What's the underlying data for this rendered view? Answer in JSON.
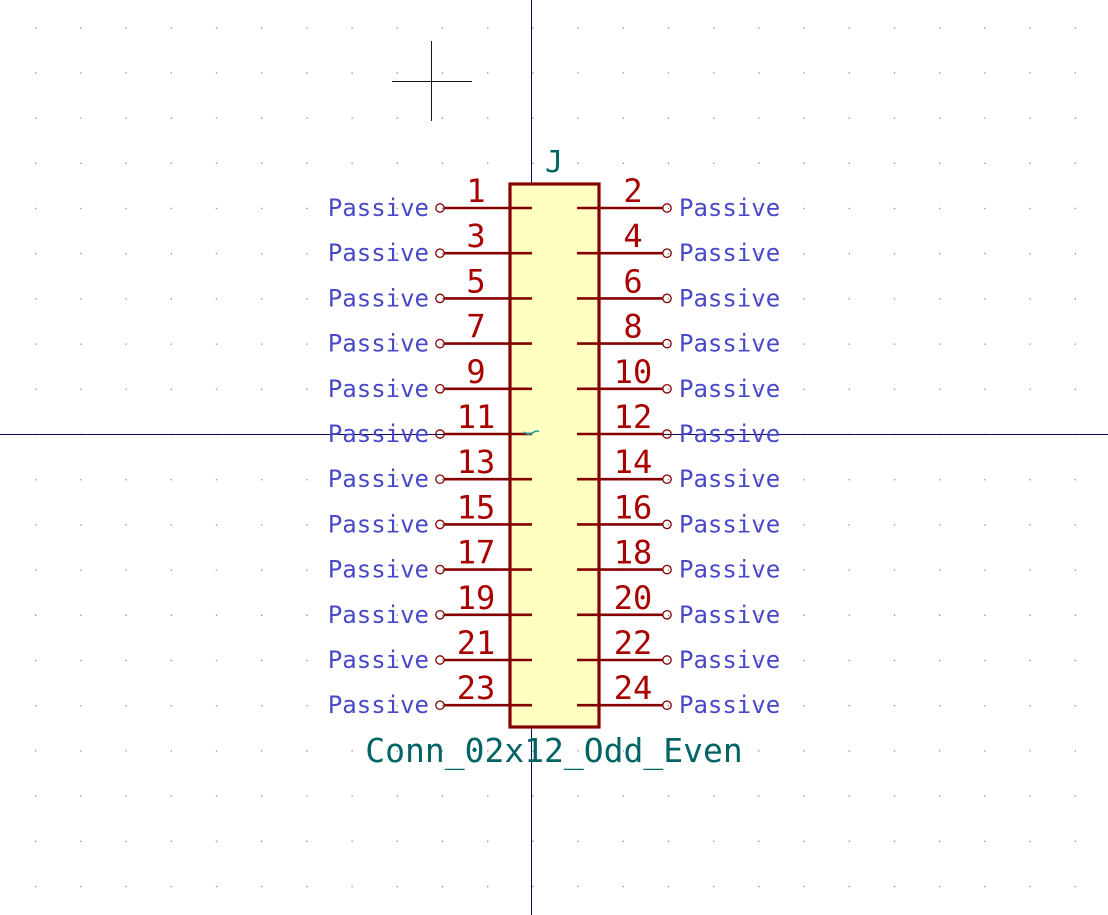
{
  "symbol": {
    "reference": "J",
    "value": "Conn_02x12_Odd_Even",
    "pin_type_label": "Passive",
    "pins_left": [
      "1",
      "3",
      "5",
      "7",
      "9",
      "11",
      "13",
      "15",
      "17",
      "19",
      "21",
      "23"
    ],
    "pins_right": [
      "2",
      "4",
      "6",
      "8",
      "10",
      "12",
      "14",
      "16",
      "18",
      "20",
      "22",
      "24"
    ]
  },
  "colors": {
    "background": "#ffffff",
    "grid": "#9a9a9a",
    "axes": "#0a0a5a",
    "cursor": "#1a1a1a",
    "body_outline": "#840000",
    "body_fill": "#ffffc2",
    "pin": "#840000",
    "pin_number": "#a90000",
    "pin_type": "#4848c8",
    "field_text": "#006464"
  }
}
